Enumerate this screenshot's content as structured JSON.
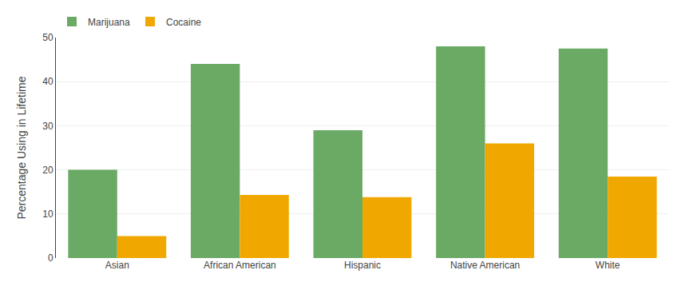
{
  "chart_data": {
    "type": "bar",
    "categories": [
      "Asian",
      "African American",
      "Hispanic",
      "Native American",
      "White"
    ],
    "series": [
      {
        "name": "Marijuana",
        "color": "#6aaa64",
        "values": [
          20,
          44,
          29,
          48,
          47.5
        ]
      },
      {
        "name": "Cocaine",
        "color": "#f0a800",
        "values": [
          5,
          14.3,
          13.8,
          26,
          18.5
        ]
      }
    ],
    "ylabel": "Percentage Using in Lifetime",
    "ylim": [
      0,
      50
    ],
    "yticks": [
      0,
      10,
      20,
      30,
      40,
      50
    ],
    "grid": true,
    "legend": "upper left"
  }
}
